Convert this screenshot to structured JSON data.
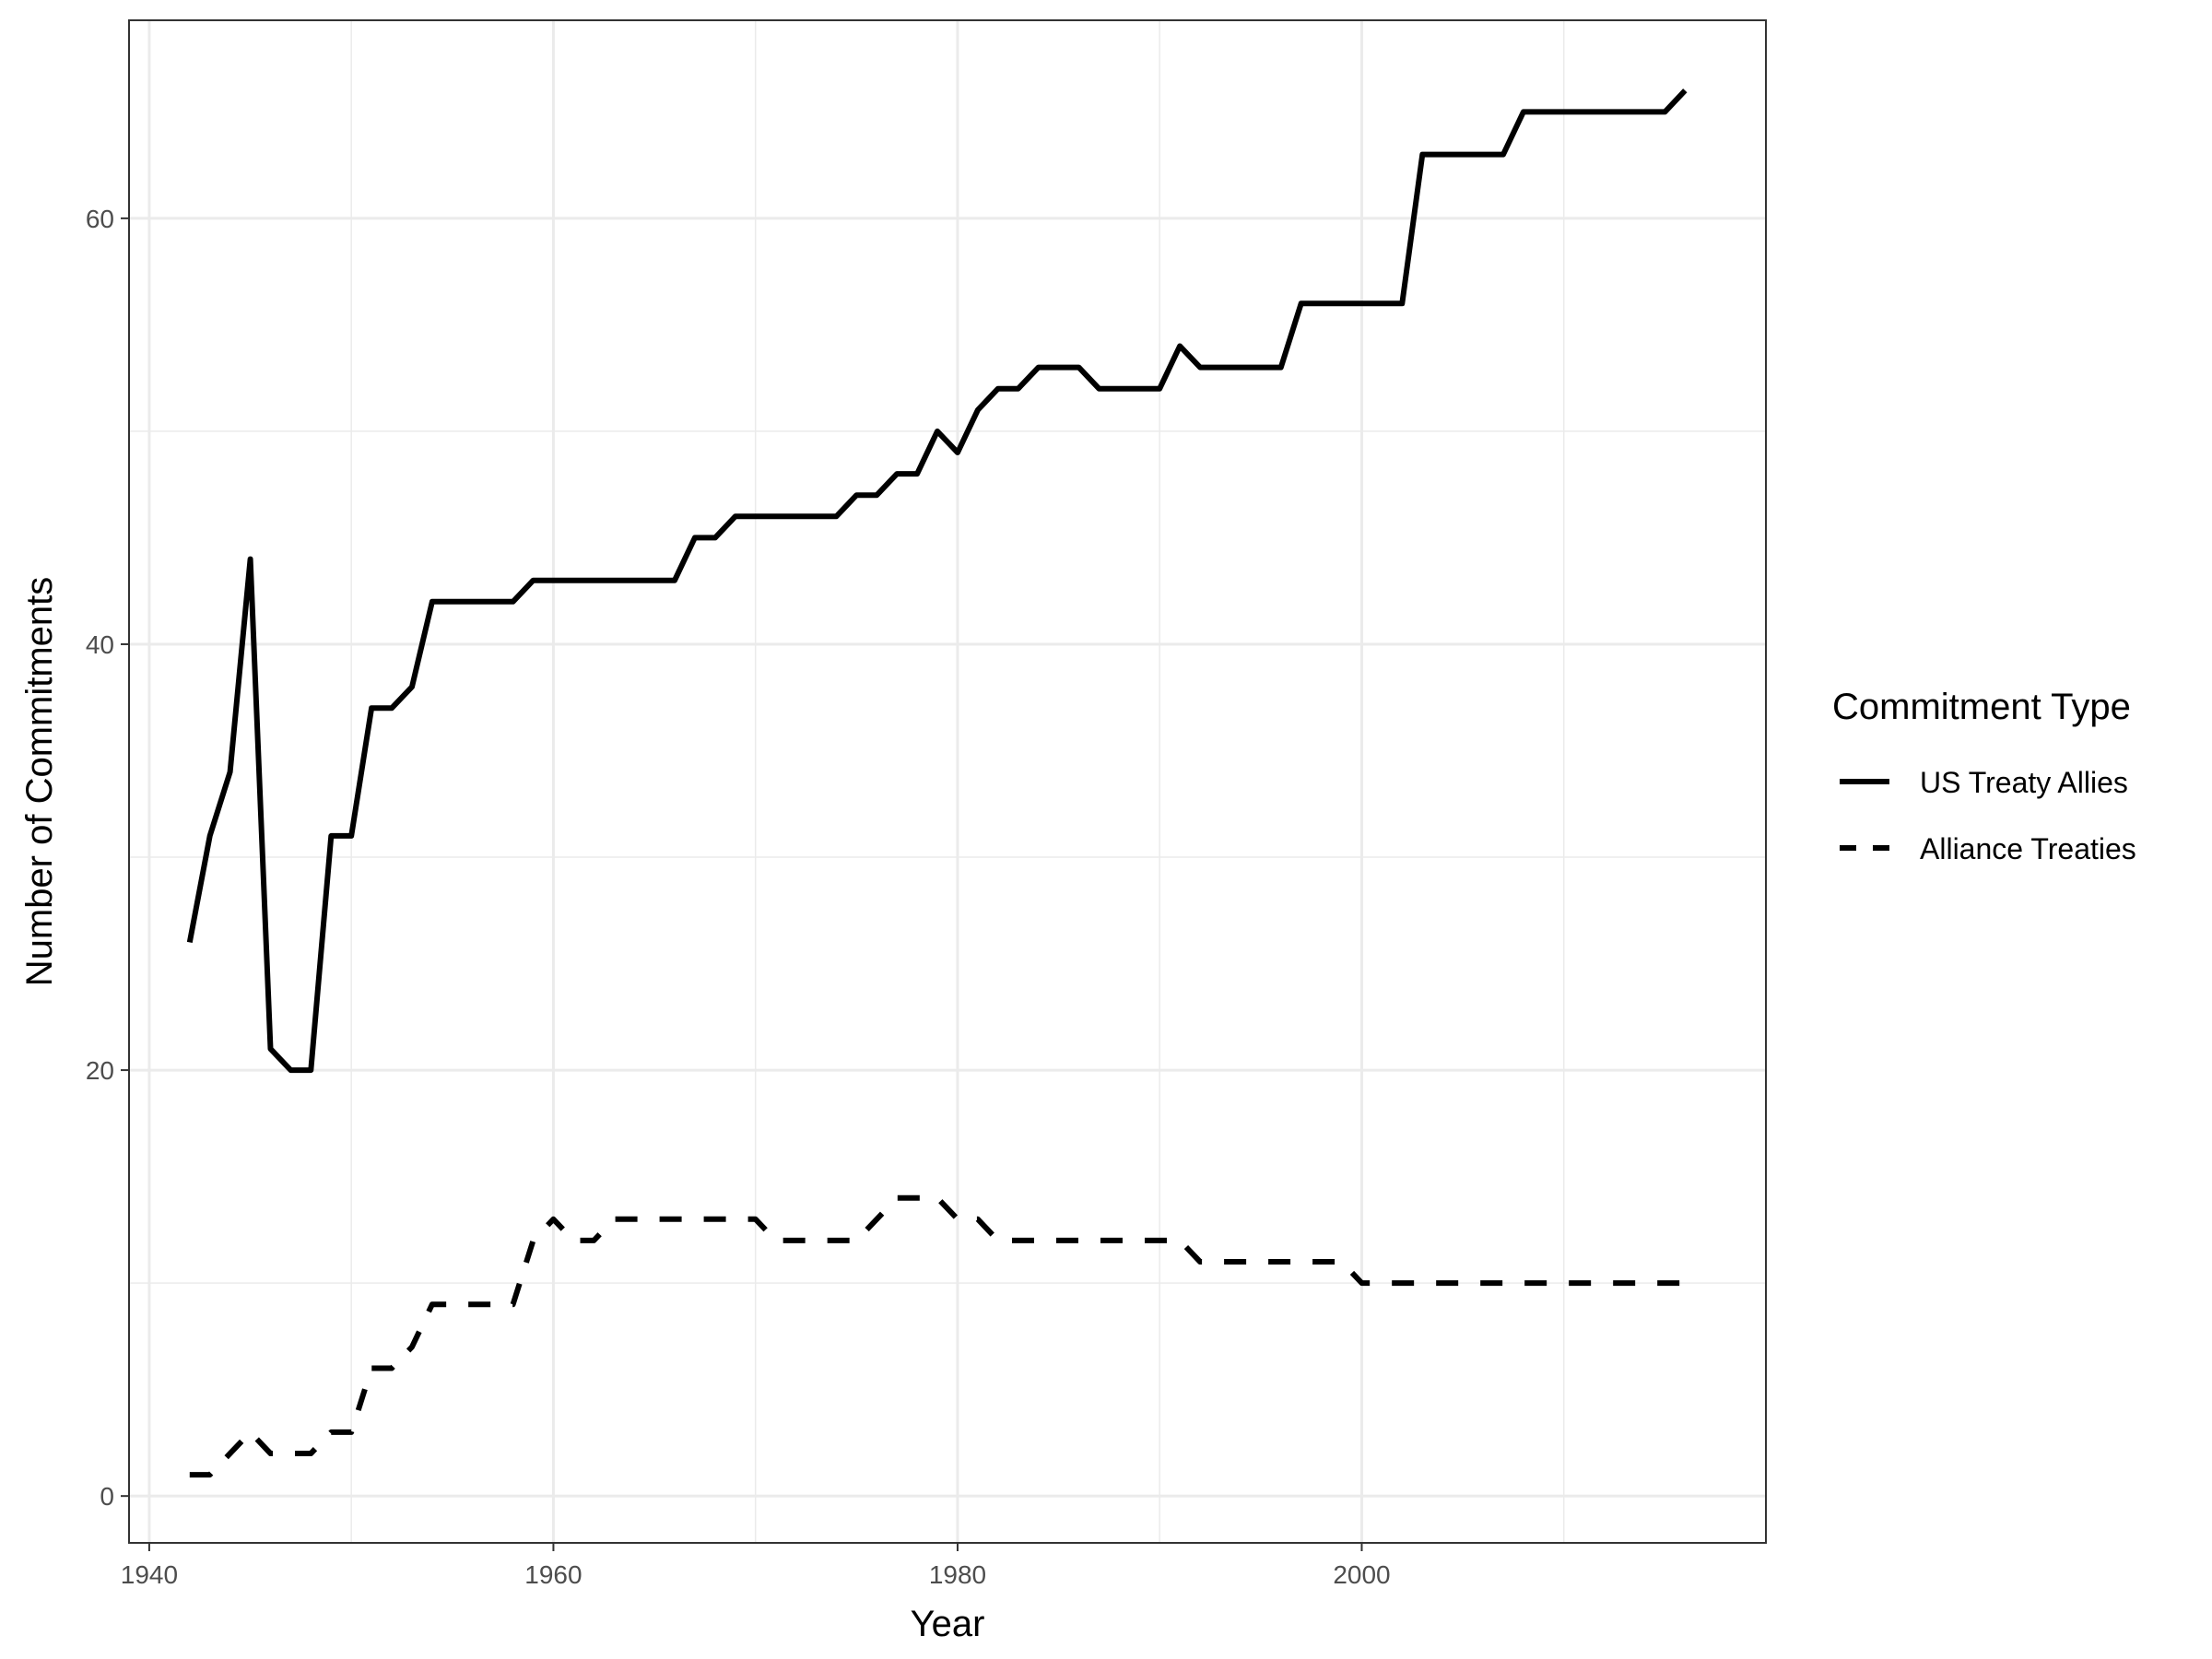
{
  "chart_data": {
    "type": "line",
    "title": "",
    "xlabel": "Year",
    "ylabel": "Number of Commitments",
    "xlim": [
      1939,
      2020
    ],
    "ylim": [
      -2.2,
      69.3
    ],
    "x_ticks": [
      1940,
      1960,
      1980,
      2000
    ],
    "y_ticks": [
      0,
      20,
      40,
      60
    ],
    "grid": true,
    "legend": {
      "title": "Commitment Type",
      "position": "right"
    },
    "series": [
      {
        "name": "US Treaty Allies",
        "line_style": "solid",
        "color": "#000000",
        "points": [
          [
            1942,
            26
          ],
          [
            1943,
            31
          ],
          [
            1944,
            34
          ],
          [
            1945,
            44
          ],
          [
            1946,
            21
          ],
          [
            1947,
            20
          ],
          [
            1948,
            20
          ],
          [
            1949,
            31
          ],
          [
            1950,
            31
          ],
          [
            1951,
            37
          ],
          [
            1952,
            37
          ],
          [
            1953,
            38
          ],
          [
            1954,
            42
          ],
          [
            1955,
            42
          ],
          [
            1956,
            42
          ],
          [
            1957,
            42
          ],
          [
            1958,
            42
          ],
          [
            1959,
            43
          ],
          [
            1960,
            43
          ],
          [
            1961,
            43
          ],
          [
            1962,
            43
          ],
          [
            1963,
            43
          ],
          [
            1964,
            43
          ],
          [
            1965,
            43
          ],
          [
            1966,
            43
          ],
          [
            1967,
            45
          ],
          [
            1968,
            45
          ],
          [
            1969,
            46
          ],
          [
            1970,
            46
          ],
          [
            1971,
            46
          ],
          [
            1972,
            46
          ],
          [
            1973,
            46
          ],
          [
            1974,
            46
          ],
          [
            1975,
            47
          ],
          [
            1976,
            47
          ],
          [
            1977,
            48
          ],
          [
            1978,
            48
          ],
          [
            1979,
            50
          ],
          [
            1980,
            49
          ],
          [
            1981,
            51
          ],
          [
            1982,
            52
          ],
          [
            1983,
            52
          ],
          [
            1984,
            53
          ],
          [
            1985,
            53
          ],
          [
            1986,
            53
          ],
          [
            1987,
            52
          ],
          [
            1988,
            52
          ],
          [
            1989,
            52
          ],
          [
            1990,
            52
          ],
          [
            1991,
            54
          ],
          [
            1992,
            53
          ],
          [
            1993,
            53
          ],
          [
            1994,
            53
          ],
          [
            1995,
            53
          ],
          [
            1996,
            53
          ],
          [
            1997,
            56
          ],
          [
            1998,
            56
          ],
          [
            1999,
            56
          ],
          [
            2000,
            56
          ],
          [
            2001,
            56
          ],
          [
            2002,
            56
          ],
          [
            2003,
            63
          ],
          [
            2004,
            63
          ],
          [
            2005,
            63
          ],
          [
            2006,
            63
          ],
          [
            2007,
            63
          ],
          [
            2008,
            65
          ],
          [
            2009,
            65
          ],
          [
            2010,
            65
          ],
          [
            2011,
            65
          ],
          [
            2012,
            65
          ],
          [
            2013,
            65
          ],
          [
            2014,
            65
          ],
          [
            2015,
            65
          ],
          [
            2016,
            66
          ]
        ]
      },
      {
        "name": "Alliance Treaties",
        "line_style": "dashed",
        "color": "#000000",
        "points": [
          [
            1942,
            1
          ],
          [
            1943,
            1
          ],
          [
            1944,
            2
          ],
          [
            1945,
            3
          ],
          [
            1946,
            2
          ],
          [
            1947,
            2
          ],
          [
            1948,
            2
          ],
          [
            1949,
            3
          ],
          [
            1950,
            3
          ],
          [
            1951,
            6
          ],
          [
            1952,
            6
          ],
          [
            1953,
            7
          ],
          [
            1954,
            9
          ],
          [
            1955,
            9
          ],
          [
            1956,
            9
          ],
          [
            1957,
            9
          ],
          [
            1958,
            9
          ],
          [
            1959,
            12
          ],
          [
            1960,
            13
          ],
          [
            1961,
            12
          ],
          [
            1962,
            12
          ],
          [
            1963,
            13
          ],
          [
            1964,
            13
          ],
          [
            1965,
            13
          ],
          [
            1966,
            13
          ],
          [
            1967,
            13
          ],
          [
            1968,
            13
          ],
          [
            1969,
            13
          ],
          [
            1970,
            13
          ],
          [
            1971,
            12
          ],
          [
            1972,
            12
          ],
          [
            1973,
            12
          ],
          [
            1974,
            12
          ],
          [
            1975,
            12
          ],
          [
            1976,
            13
          ],
          [
            1977,
            14
          ],
          [
            1978,
            14
          ],
          [
            1979,
            14
          ],
          [
            1980,
            13
          ],
          [
            1981,
            13
          ],
          [
            1982,
            12
          ],
          [
            1983,
            12
          ],
          [
            1984,
            12
          ],
          [
            1985,
            12
          ],
          [
            1986,
            12
          ],
          [
            1987,
            12
          ],
          [
            1988,
            12
          ],
          [
            1989,
            12
          ],
          [
            1990,
            12
          ],
          [
            1991,
            12
          ],
          [
            1992,
            11
          ],
          [
            1993,
            11
          ],
          [
            1994,
            11
          ],
          [
            1995,
            11
          ],
          [
            1996,
            11
          ],
          [
            1997,
            11
          ],
          [
            1998,
            11
          ],
          [
            1999,
            11
          ],
          [
            2000,
            10
          ],
          [
            2001,
            10
          ],
          [
            2002,
            10
          ],
          [
            2003,
            10
          ],
          [
            2004,
            10
          ],
          [
            2005,
            10
          ],
          [
            2006,
            10
          ],
          [
            2007,
            10
          ],
          [
            2008,
            10
          ],
          [
            2009,
            10
          ],
          [
            2010,
            10
          ],
          [
            2011,
            10
          ],
          [
            2012,
            10
          ],
          [
            2013,
            10
          ],
          [
            2014,
            10
          ],
          [
            2015,
            10
          ],
          [
            2016,
            10
          ]
        ]
      }
    ]
  }
}
